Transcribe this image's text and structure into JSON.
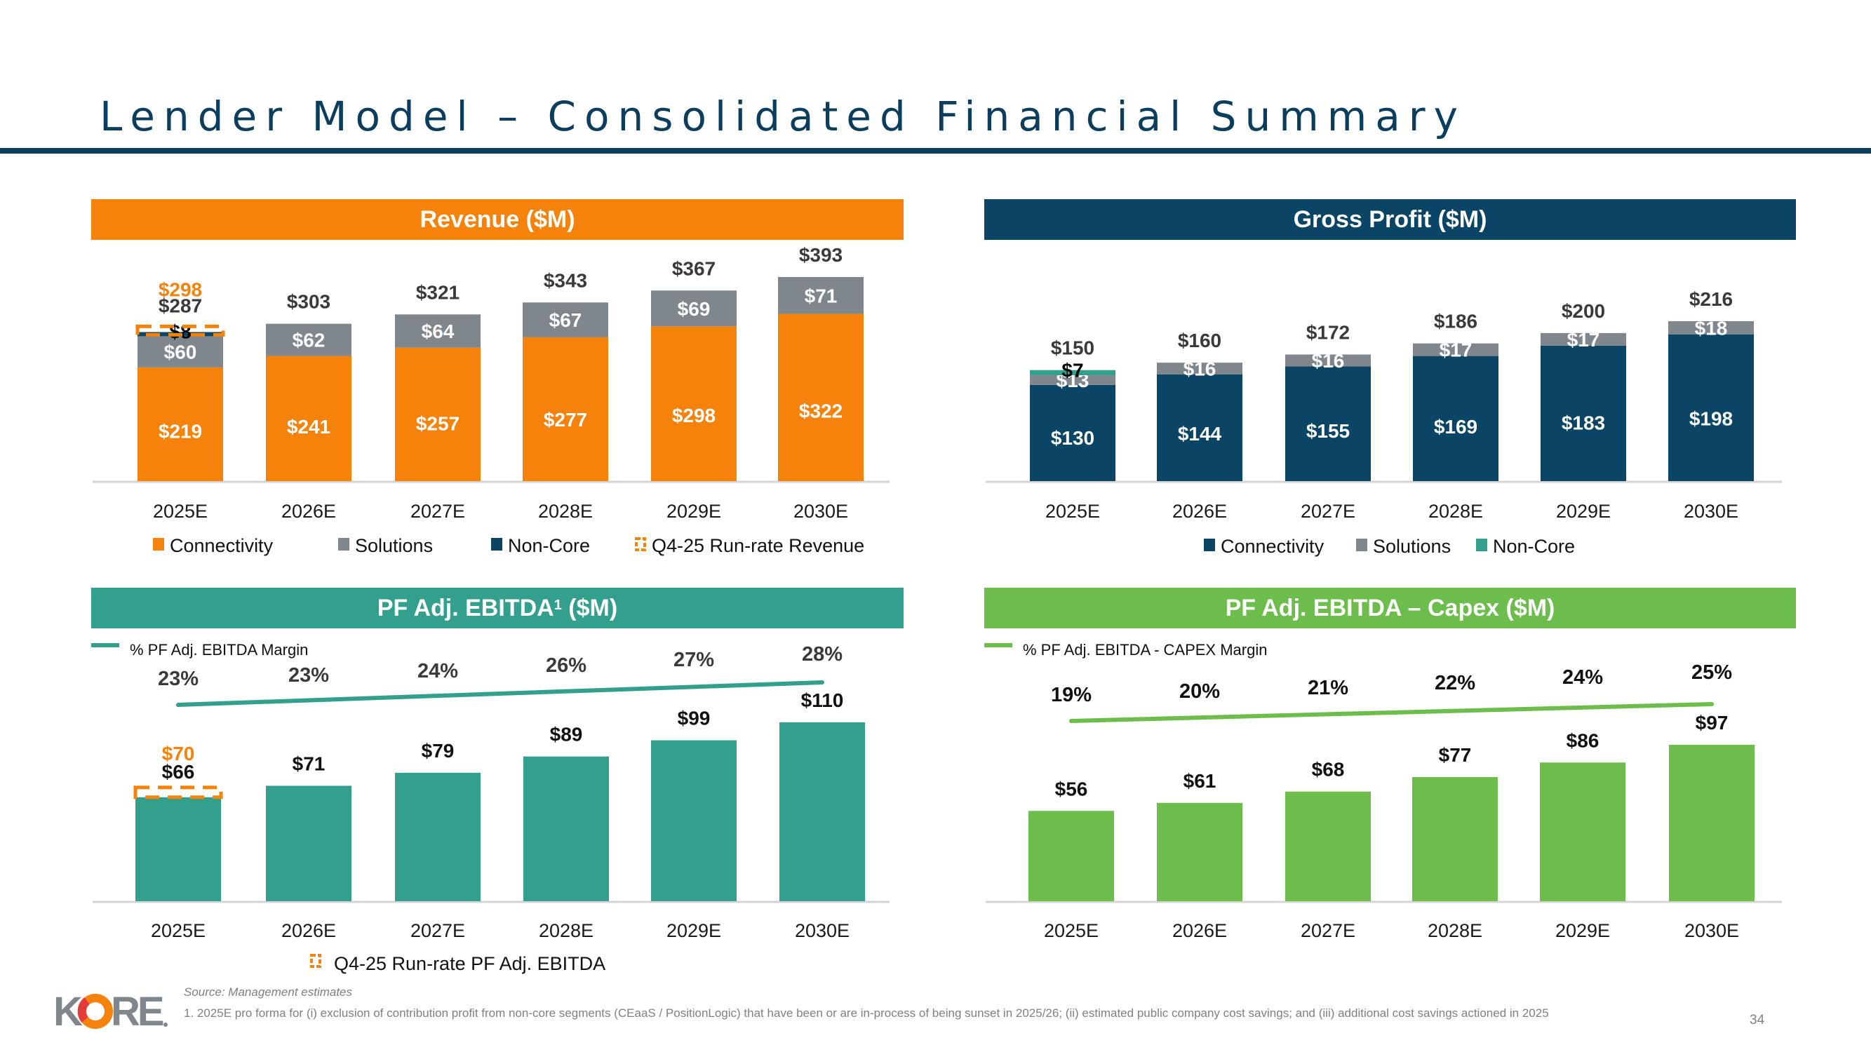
{
  "page": {
    "title": "Lender Model – Consolidated Financial Summary",
    "page_number": "34",
    "logo_text": "KORE",
    "footer": {
      "source": "Source: Management estimates",
      "note": "1. 2025E pro forma for (i) exclusion of contribution profit from non-core segments (CEaaS / PositionLogic) that have been or are in-process of being sunset in 2025/26; (ii) estimated public company cost savings; and (iii) additional cost savings actioned in 2025"
    },
    "colors": {
      "title": "#0b3e5e",
      "orange": "#f5820a",
      "navy": "#0b4566",
      "gray": "#7f868c",
      "teal": "#32a08c",
      "green": "#6cbd4b",
      "label_dark": "#3a3a3a",
      "axis": "#d4d4d4"
    }
  },
  "chart_data": [
    {
      "id": "revenue",
      "type": "bar",
      "stacked": true,
      "title": "Revenue ($M)",
      "header_color": "#f5820a",
      "categories": [
        "2025E",
        "2026E",
        "2027E",
        "2028E",
        "2029E",
        "2030E"
      ],
      "series": [
        {
          "name": "Connectivity",
          "color": "#f5820a",
          "values": [
            219,
            241,
            257,
            277,
            298,
            322
          ],
          "labels": [
            "$219",
            "$241",
            "$257",
            "$277",
            "$298",
            "$322"
          ]
        },
        {
          "name": "Solutions",
          "color": "#7f868c",
          "values": [
            60,
            62,
            64,
            67,
            69,
            71
          ],
          "labels": [
            "$60",
            "$62",
            "$64",
            "$67",
            "$69",
            "$71"
          ]
        },
        {
          "name": "Non-Core",
          "color": "#0b4566",
          "values": [
            8,
            0,
            0,
            0,
            0,
            0
          ],
          "labels": [
            "$8",
            "",
            "",
            "",
            "",
            ""
          ]
        }
      ],
      "totals": [
        "$287",
        "$303",
        "$321",
        "$343",
        "$367",
        "$393"
      ],
      "run_rate": {
        "name": "Q4-25 Run-rate Revenue",
        "category": "2025E",
        "value": 298,
        "label": "$298",
        "color": "#f5820a"
      },
      "legend": [
        "Connectivity",
        "Solutions",
        "Non-Core",
        "Q4-25 Run-rate Revenue"
      ],
      "ylim": [
        0,
        420
      ]
    },
    {
      "id": "gross_profit",
      "type": "bar",
      "stacked": true,
      "title": "Gross Profit ($M)",
      "header_color": "#0b4566",
      "categories": [
        "2025E",
        "2026E",
        "2027E",
        "2028E",
        "2029E",
        "2030E"
      ],
      "series": [
        {
          "name": "Connectivity",
          "color": "#0b4566",
          "values": [
            130,
            144,
            155,
            169,
            183,
            198
          ],
          "labels": [
            "$130",
            "$144",
            "$155",
            "$169",
            "$183",
            "$198"
          ]
        },
        {
          "name": "Solutions",
          "color": "#7f868c",
          "values": [
            13,
            16,
            16,
            17,
            17,
            18
          ],
          "labels": [
            "$13",
            "$16",
            "$16",
            "$17",
            "$17",
            "$18"
          ]
        },
        {
          "name": "Non-Core",
          "color": "#32a08c",
          "values": [
            7,
            0,
            0,
            0,
            0,
            0
          ],
          "labels": [
            "$7",
            "",
            "",
            "",
            "",
            ""
          ]
        }
      ],
      "totals": [
        "$150",
        "$160",
        "$172",
        "$186",
        "$200",
        "$216"
      ],
      "legend": [
        "Connectivity",
        "Solutions",
        "Non-Core"
      ],
      "ylim": [
        0,
        240
      ]
    },
    {
      "id": "ebitda",
      "type": "bar",
      "title": "PF Adj. EBITDA",
      "title_sup": "1",
      "title_suffix": "($M)",
      "header_color": "#32a08c",
      "categories": [
        "2025E",
        "2026E",
        "2027E",
        "2028E",
        "2029E",
        "2030E"
      ],
      "values": [
        66,
        71,
        79,
        89,
        99,
        110
      ],
      "labels": [
        "$66",
        "$71",
        "$79",
        "$89",
        "$99",
        "$110"
      ],
      "bar_color": "#32a08c",
      "margin_line": {
        "name": "% PF Adj. EBITDA Margin",
        "values": [
          23,
          23,
          24,
          26,
          27,
          28
        ],
        "labels": [
          "23%",
          "23%",
          "24%",
          "26%",
          "27%",
          "28%"
        ],
        "color": "#32a08c"
      },
      "run_rate": {
        "name": "Q4-25 Run-rate PF Adj. EBITDA",
        "category": "2025E",
        "value": 70,
        "label": "$70",
        "color": "#f5820a"
      },
      "legend": [
        "Q4-25 Run-rate PF Adj. EBITDA"
      ],
      "ylim": [
        0,
        130
      ]
    },
    {
      "id": "ebitda_capex",
      "type": "bar",
      "title": "PF Adj. EBITDA – Capex ($M)",
      "header_color": "#6cbd4b",
      "categories": [
        "2025E",
        "2026E",
        "2027E",
        "2028E",
        "2029E",
        "2030E"
      ],
      "values": [
        56,
        61,
        68,
        77,
        86,
        97
      ],
      "labels": [
        "$56",
        "$61",
        "$68",
        "$77",
        "$86",
        "$97"
      ],
      "bar_color": "#6cbd4b",
      "margin_line": {
        "name": "% PF Adj. EBITDA - CAPEX Margin",
        "values": [
          19,
          20,
          21,
          22,
          24,
          25
        ],
        "labels": [
          "19%",
          "20%",
          "21%",
          "22%",
          "24%",
          "25%"
        ],
        "color": "#6cbd4b"
      },
      "ylim": [
        0,
        115
      ]
    }
  ]
}
